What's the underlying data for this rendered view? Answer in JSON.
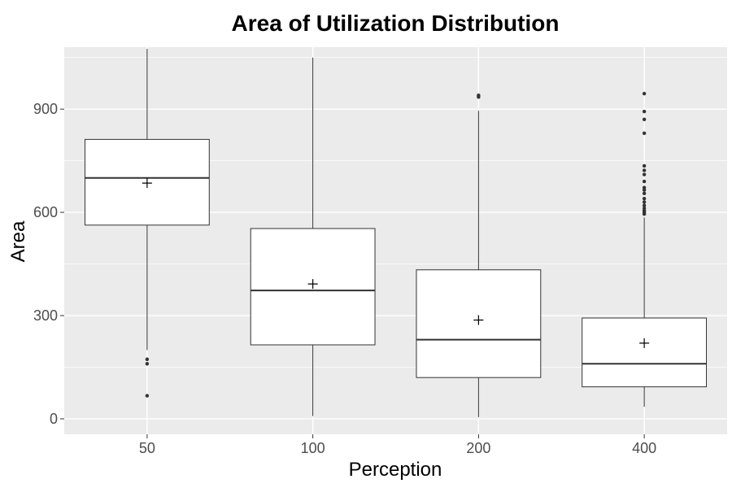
{
  "chart_data": {
    "type": "boxplot",
    "title": "Area of Utilization Distribution",
    "xlabel": "Perception",
    "ylabel": "Area",
    "ylim": [
      -45,
      1080
    ],
    "yticks": [
      0,
      300,
      600,
      900
    ],
    "grid": true,
    "categories": [
      "50",
      "100",
      "200",
      "400"
    ],
    "boxes": [
      {
        "category": "50",
        "whisker_low": 200,
        "q1": 563,
        "median": 700,
        "q3": 812,
        "whisker_high": 1075,
        "mean": 685,
        "outliers": [
          67,
          160,
          173
        ]
      },
      {
        "category": "100",
        "whisker_low": 8,
        "q1": 215,
        "median": 373,
        "q3": 553,
        "whisker_high": 1050,
        "mean": 392,
        "outliers": []
      },
      {
        "category": "200",
        "whisker_low": 5,
        "q1": 120,
        "median": 230,
        "q3": 433,
        "whisker_high": 895,
        "mean": 287,
        "outliers": [
          935,
          940
        ]
      },
      {
        "category": "400",
        "whisker_low": 35,
        "q1": 93,
        "median": 160,
        "q3": 293,
        "whisker_high": 585,
        "mean": 220,
        "outliers": [
          595,
          600,
          605,
          612,
          620,
          630,
          640,
          655,
          665,
          672,
          690,
          710,
          722,
          735,
          830,
          870,
          893,
          945
        ]
      }
    ],
    "colors": {
      "panel": "#ebebeb",
      "grid": "#ffffff",
      "box_fill": "#ffffff",
      "box_stroke": "#333333"
    }
  }
}
